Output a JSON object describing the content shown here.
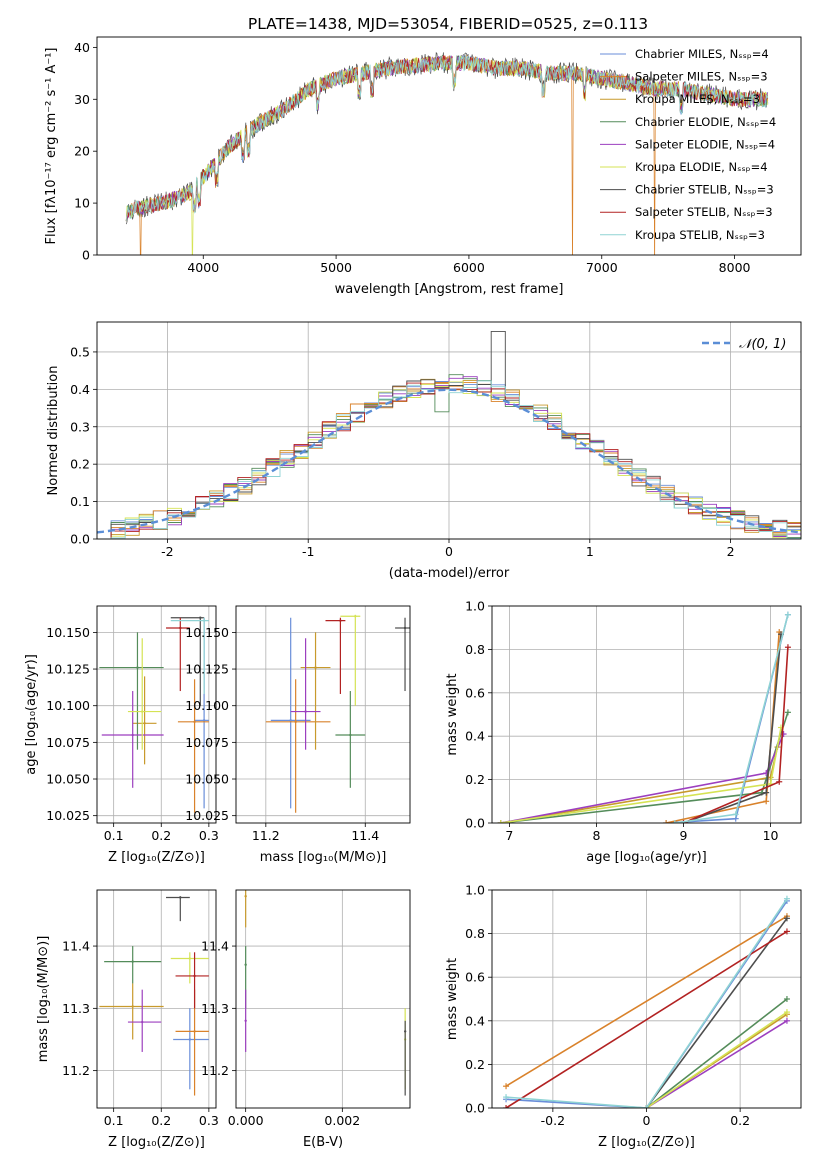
{
  "figure_title": "PLATE=1438, MJD=53054, FIBERID=0525, z=0.113",
  "colors": [
    "#6a8ed9",
    "#d9822b",
    "#c89a2c",
    "#548c5a",
    "#9c3fbf",
    "#d5e354",
    "#4d4d4d",
    "#b22222",
    "#8fd3d4"
  ],
  "chart_data": [
    {
      "id": "spectrum",
      "type": "line",
      "title": "PLATE=1438, MJD=53054, FIBERID=0525, z=0.113",
      "xlabel": "wavelength [Angstrom, rest frame]",
      "ylabel": "Flux [fλ10⁻¹⁷ erg cm⁻² s⁻¹ A⁻¹]",
      "xlim": [
        3200,
        8500
      ],
      "ylim": [
        0,
        42
      ],
      "xticks": [
        4000,
        5000,
        6000,
        7000,
        8000
      ],
      "yticks": [
        0,
        10,
        20,
        30,
        40
      ],
      "legend": "right",
      "series_names": [
        "Chabrier MILES, Nₛₛₚ=4",
        "Salpeter MILES, Nₛₛₚ=3",
        "Kroupa MILES, Nₛₛₚ=3",
        "Chabrier ELODIE, Nₛₛₚ=4",
        "Salpeter ELODIE, Nₛₛₚ=4",
        "Kroupa ELODIE, Nₛₛₚ=4",
        "Chabrier STELIB, Nₛₛₚ=3",
        "Salpeter STELIB, Nₛₛₚ=3",
        "Kroupa STELIB, Nₛₛₚ=3"
      ],
      "continuum": {
        "x": [
          3420,
          3500,
          3700,
          3900,
          4000,
          4200,
          4400,
          4600,
          4800,
          5000,
          5200,
          5400,
          5600,
          5800,
          6000,
          6200,
          6400,
          6600,
          6800,
          7000,
          7200,
          7400,
          7600,
          7800,
          8000,
          8200,
          8250
        ],
        "y": [
          8,
          9,
          10,
          12,
          15,
          21,
          25,
          28,
          32,
          34,
          35,
          36,
          36.5,
          37,
          37,
          36,
          36,
          35,
          35,
          34,
          33,
          32,
          32,
          31,
          30,
          30,
          30
        ]
      },
      "drops": [
        {
          "series": 1,
          "x": 3530
        },
        {
          "series": 5,
          "x": 3920
        },
        {
          "series": 1,
          "x": 6780
        },
        {
          "series": 1,
          "x": 7400
        }
      ]
    },
    {
      "id": "residual-histogram",
      "type": "bar",
      "xlabel": "(data-model)/error",
      "ylabel": "Normed distribution",
      "xlim": [
        -2.5,
        2.5
      ],
      "ylim": [
        0,
        0.58
      ],
      "xticks": [
        -2,
        -1,
        0,
        1,
        2
      ],
      "yticks": [
        0.0,
        0.1,
        0.2,
        0.3,
        0.4,
        0.5
      ],
      "grid": true,
      "bin_width": 0.1,
      "reference_curve": {
        "name": "𝒩(0, 1)",
        "mean": 0,
        "sigma": 1
      },
      "legend": "top-right"
    },
    {
      "id": "age-vs-z",
      "type": "scatter",
      "xlabel": "Z [log₁₀(Z/Z⊙)]",
      "ylabel": "age  [log₁₀(age/yr)]",
      "xlim": [
        0.065,
        0.315
      ],
      "ylim": [
        10.02,
        10.168
      ],
      "xticks": [
        0.1,
        0.2,
        0.3
      ],
      "yticks": [
        10.025,
        10.05,
        10.075,
        10.1,
        10.125,
        10.15
      ],
      "grid": true,
      "points": [
        {
          "x": 0.29,
          "y": 10.09,
          "xerr": [
            0.27,
            0.3
          ],
          "yerr": [
            10.03,
            10.16
          ]
        },
        {
          "x": 0.27,
          "y": 10.089,
          "xerr": [
            0.235,
            0.3
          ],
          "yerr": [
            10.027,
            10.118
          ]
        },
        {
          "x": 0.165,
          "y": 10.088,
          "xerr": [
            0.14,
            0.19
          ],
          "yerr": [
            10.06,
            10.12
          ]
        },
        {
          "x": 0.15,
          "y": 10.126,
          "xerr": [
            0.07,
            0.205
          ],
          "yerr": [
            10.07,
            10.15
          ]
        },
        {
          "x": 0.14,
          "y": 10.08,
          "xerr": [
            0.075,
            0.205
          ],
          "yerr": [
            10.044,
            10.11
          ]
        },
        {
          "x": 0.16,
          "y": 10.096,
          "xerr": [
            0.13,
            0.2
          ],
          "yerr": [
            10.07,
            10.146
          ]
        },
        {
          "x": 0.282,
          "y": 10.16,
          "xerr": [
            0.22,
            0.29
          ],
          "yerr": [
            10.1,
            10.16
          ]
        },
        {
          "x": 0.24,
          "y": 10.153,
          "xerr": [
            0.21,
            0.26
          ],
          "yerr": [
            10.11,
            10.16
          ]
        },
        {
          "x": 0.29,
          "y": 10.158,
          "xerr": [
            0.22,
            0.3
          ],
          "yerr": [
            10.108,
            10.16
          ]
        }
      ]
    },
    {
      "id": "age-vs-mass",
      "type": "scatter",
      "xlabel": "mass [log₁₀(M/M⊙)]",
      "ylabel": "",
      "xlim": [
        11.14,
        11.49
      ],
      "ylim": [
        10.02,
        10.168
      ],
      "xticks": [
        11.2,
        11.4
      ],
      "yticks": [
        10.025,
        10.05,
        10.075,
        10.1,
        10.125,
        10.15
      ],
      "grid": true,
      "points": [
        {
          "x": 11.25,
          "y": 10.09,
          "xerr": [
            11.21,
            11.29
          ],
          "yerr": [
            10.03,
            10.16
          ]
        },
        {
          "x": 11.26,
          "y": 10.089,
          "xerr": [
            11.2,
            11.33
          ],
          "yerr": [
            10.027,
            10.118
          ]
        },
        {
          "x": 11.3,
          "y": 10.126,
          "xerr": [
            11.27,
            11.33
          ],
          "yerr": [
            10.07,
            10.15
          ]
        },
        {
          "x": 11.37,
          "y": 10.08,
          "xerr": [
            11.34,
            11.4
          ],
          "yerr": [
            10.044,
            10.11
          ]
        },
        {
          "x": 11.28,
          "y": 10.096,
          "xerr": [
            11.25,
            11.31
          ],
          "yerr": [
            10.07,
            10.146
          ]
        },
        {
          "x": 11.38,
          "y": 10.161,
          "xerr": [
            11.35,
            11.39
          ],
          "yerr": [
            10.1,
            10.162
          ]
        },
        {
          "x": 11.48,
          "y": 10.153,
          "xerr": [
            11.46,
            11.49
          ],
          "yerr": [
            10.11,
            10.16
          ]
        },
        {
          "x": 11.35,
          "y": 10.158,
          "xerr": [
            11.32,
            11.36
          ],
          "yerr": [
            10.108,
            10.16
          ]
        }
      ]
    },
    {
      "id": "mass-weight-vs-age",
      "type": "line",
      "xlabel": "age  [log₁₀(age/yr)]",
      "ylabel": "mass weight",
      "xlim": [
        6.8,
        10.35
      ],
      "ylim": [
        0.0,
        1.0
      ],
      "xticks": [
        7,
        8,
        9,
        10
      ],
      "yticks": [
        0.0,
        0.2,
        0.4,
        0.6,
        0.8,
        1.0
      ],
      "grid": true,
      "series": [
        {
          "x": [
            8.8,
            9.6,
            10.2
          ],
          "y": [
            0.0,
            0.02,
            0.96
          ]
        },
        {
          "x": [
            8.8,
            9.95,
            10.1
          ],
          "y": [
            0.0,
            0.1,
            0.88
          ]
        },
        {
          "x": [
            6.9,
            10.0,
            10.08
          ],
          "y": [
            0.0,
            0.21,
            0.35
          ]
        },
        {
          "x": [
            6.9,
            9.9,
            10.2
          ],
          "y": [
            0.0,
            0.14,
            0.51
          ]
        },
        {
          "x": [
            6.9,
            9.95,
            10.15
          ],
          "y": [
            0.0,
            0.23,
            0.41
          ]
        },
        {
          "x": [
            6.9,
            10.0,
            10.12
          ],
          "y": [
            0.0,
            0.18,
            0.44
          ]
        },
        {
          "x": [
            9.0,
            9.95,
            10.12
          ],
          "y": [
            0.0,
            0.14,
            0.87
          ]
        },
        {
          "x": [
            9.0,
            10.1,
            10.2
          ],
          "y": [
            0.0,
            0.19,
            0.81
          ]
        },
        {
          "x": [
            8.9,
            9.6,
            10.2
          ],
          "y": [
            0.0,
            0.04,
            0.96
          ]
        }
      ]
    },
    {
      "id": "mass-vs-z",
      "type": "scatter",
      "xlabel": "Z [log₁₀(Z/Z⊙)]",
      "ylabel": "mass [log₁₀(M/M⊙)]",
      "xlim": [
        0.065,
        0.315
      ],
      "ylim": [
        11.14,
        11.49
      ],
      "xticks": [
        0.1,
        0.2,
        0.3
      ],
      "yticks": [
        11.2,
        11.3,
        11.4
      ],
      "grid": true,
      "points": [
        {
          "x": 0.26,
          "y": 11.25,
          "xerr": [
            0.225,
            0.3
          ],
          "yerr": [
            11.17,
            11.3
          ]
        },
        {
          "x": 0.27,
          "y": 11.263,
          "xerr": [
            0.23,
            0.3
          ],
          "yerr": [
            11.16,
            11.33
          ]
        },
        {
          "x": 0.14,
          "y": 11.303,
          "xerr": [
            0.07,
            0.205
          ],
          "yerr": [
            11.25,
            11.34
          ]
        },
        {
          "x": 0.14,
          "y": 11.375,
          "xerr": [
            0.08,
            0.2
          ],
          "yerr": [
            11.34,
            11.4
          ]
        },
        {
          "x": 0.16,
          "y": 11.278,
          "xerr": [
            0.13,
            0.2
          ],
          "yerr": [
            11.23,
            11.33
          ]
        },
        {
          "x": 0.26,
          "y": 11.38,
          "xerr": [
            0.22,
            0.3
          ],
          "yerr": [
            11.34,
            11.39
          ]
        },
        {
          "x": 0.24,
          "y": 11.478,
          "xerr": [
            0.21,
            0.26
          ],
          "yerr": [
            11.44,
            11.48
          ]
        },
        {
          "x": 0.27,
          "y": 11.352,
          "xerr": [
            0.23,
            0.3
          ],
          "yerr": [
            11.3,
            11.39
          ]
        }
      ]
    },
    {
      "id": "mass-vs-ebv",
      "type": "scatter",
      "xlabel": "E(B-V)",
      "ylabel": "",
      "xlim": [
        -0.0002,
        0.0034
      ],
      "ylim": [
        11.14,
        11.49
      ],
      "xticks": [
        0.0,
        0.002
      ],
      "xtick_labels": [
        "0.000",
        "0.002"
      ],
      "yticks": [
        11.2,
        11.3,
        11.4
      ],
      "grid": true,
      "points": [
        {
          "x": 0.0,
          "y": 11.48,
          "yerr": [
            11.43,
            11.49
          ]
        },
        {
          "x": 0.0,
          "y": 11.37,
          "yerr": [
            11.3,
            11.4
          ]
        },
        {
          "x": 0.0,
          "y": 11.28,
          "yerr": [
            11.23,
            11.33
          ]
        },
        {
          "x": 0.0033,
          "y": 11.25,
          "yerr": [
            11.17,
            11.3
          ]
        },
        {
          "x": 0.0033,
          "y": 11.263,
          "yerr": [
            11.16,
            11.28
          ]
        }
      ]
    },
    {
      "id": "mass-weight-vs-z",
      "type": "line",
      "xlabel": "Z [log₁₀(Z/Z⊙)]",
      "ylabel": "mass weight",
      "xlim": [
        -0.33,
        0.33
      ],
      "ylim": [
        0.0,
        1.0
      ],
      "xticks": [
        -0.2,
        0.0,
        0.2
      ],
      "yticks": [
        0.0,
        0.2,
        0.4,
        0.6,
        0.8,
        1.0
      ],
      "grid": true,
      "series": [
        {
          "x": [
            -0.3,
            0.0,
            0.3
          ],
          "y": [
            0.04,
            0.0,
            0.95
          ]
        },
        {
          "x": [
            -0.3,
            0.3
          ],
          "y": [
            0.1,
            0.88
          ]
        },
        {
          "x": [
            0.0,
            0.3
          ],
          "y": [
            0.0,
            0.43
          ]
        },
        {
          "x": [
            0.0,
            0.3
          ],
          "y": [
            0.0,
            0.5
          ]
        },
        {
          "x": [
            0.0,
            0.3
          ],
          "y": [
            0.0,
            0.4
          ]
        },
        {
          "x": [
            0.0,
            0.3
          ],
          "y": [
            0.0,
            0.44
          ]
        },
        {
          "x": [
            0.0,
            0.3
          ],
          "y": [
            0.0,
            0.87
          ]
        },
        {
          "x": [
            -0.3,
            0.3
          ],
          "y": [
            0.0,
            0.81
          ]
        },
        {
          "x": [
            -0.3,
            0.0,
            0.3
          ],
          "y": [
            0.05,
            0.0,
            0.96
          ]
        }
      ]
    }
  ]
}
